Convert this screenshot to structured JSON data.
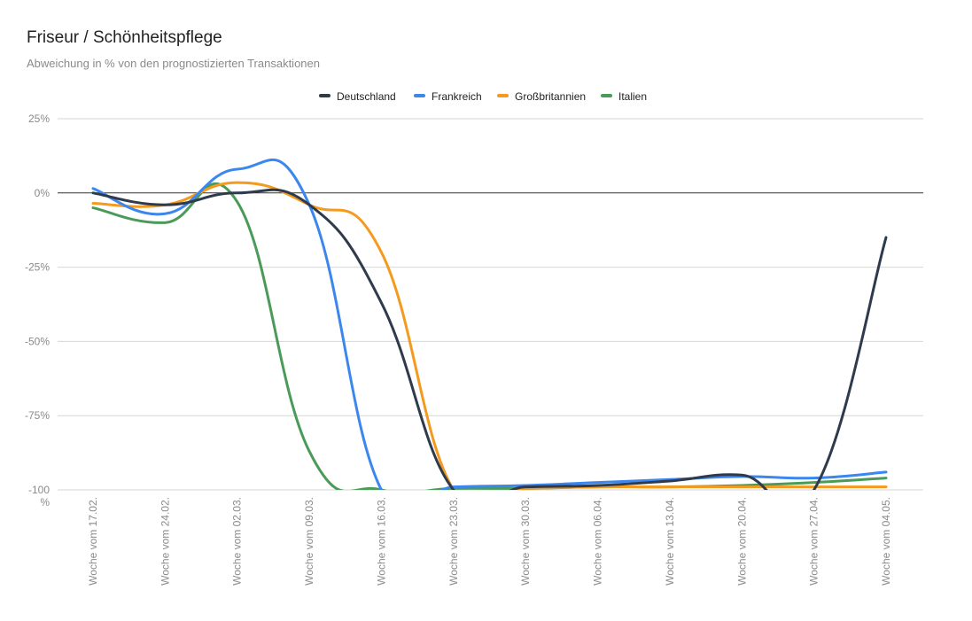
{
  "chart_data": {
    "type": "line",
    "title": "Friseur / Schönheitspflege",
    "subtitle": "Abweichung in % von den prognostizierten Transaktionen",
    "xlabel": "",
    "ylabel": "",
    "categories": [
      "Woche vom 17.02.",
      "Woche vom 24.02.",
      "Woche vom 02.03.",
      "Woche vom 09.03.",
      "Woche vom 16.03.",
      "Woche vom 23.03.",
      "Woche vom 30.03.",
      "Woche vom 06.04.",
      "Woche vom 13.04.",
      "Woche vom 20.04.",
      "Woche vom 27.04.",
      "Woche vom 04.05."
    ],
    "yticks": [
      "25%",
      "0%",
      "-25%",
      "-50%",
      "-75%",
      "-100 %"
    ],
    "ylim": [
      -100,
      25
    ],
    "grid": true,
    "legend_position": "top-center",
    "series": [
      {
        "name": "Deutschland",
        "color": "#2f3b4c",
        "values": [
          0,
          -4,
          0,
          -4,
          -37,
          -100,
          -99,
          -98.5,
          -97,
          -95,
          -100,
          -15
        ]
      },
      {
        "name": "Frankreich",
        "color": "#3b87ee",
        "values": [
          1.5,
          -7,
          8,
          -4,
          -100,
          -99,
          -98.5,
          -97.5,
          -96.5,
          -95.5,
          -96,
          -94
        ]
      },
      {
        "name": "Großbritannien",
        "color": "#f39a1f",
        "values": [
          -3.5,
          -4,
          3.5,
          -4,
          -20,
          -100,
          -99.5,
          -99,
          -99,
          -99,
          -99,
          -99
        ]
      },
      {
        "name": "Italien",
        "color": "#4a9a58",
        "values": [
          -5,
          -10,
          -3,
          -87,
          -100,
          -99.5,
          -99.5,
          -99,
          -99,
          -98.5,
          -97.5,
          -96
        ]
      }
    ]
  }
}
